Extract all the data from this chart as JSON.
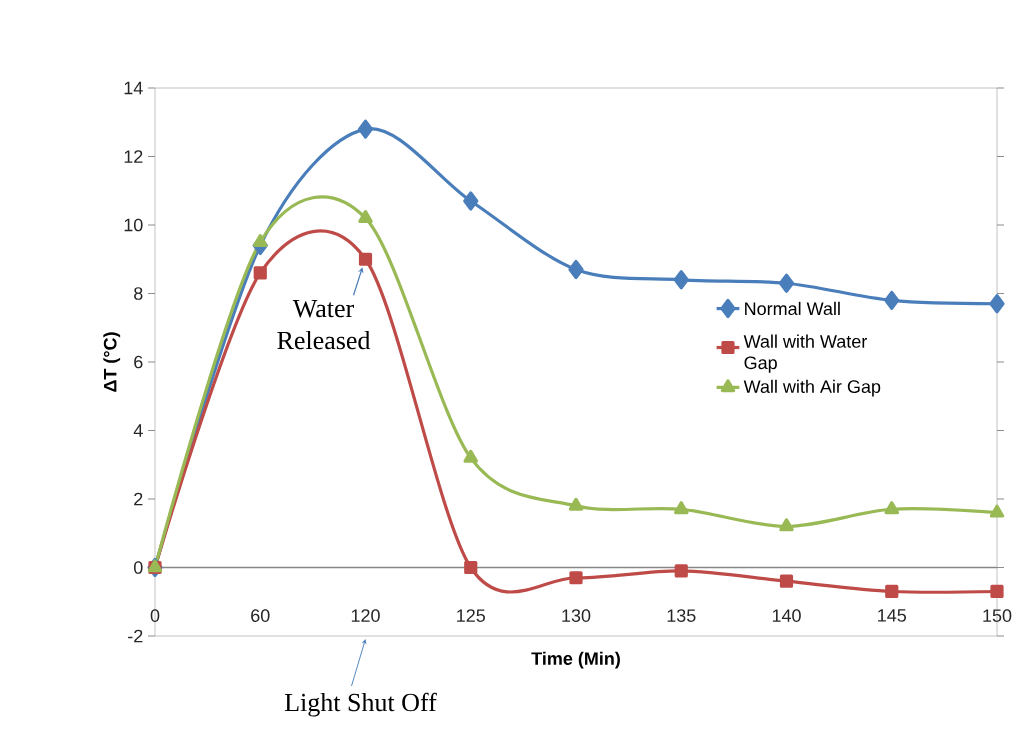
{
  "chart_data": {
    "type": "line",
    "xlabel": "Time (Min)",
    "ylabel": "ΔT (°C)",
    "categories": [
      "0",
      "60",
      "120",
      "125",
      "130",
      "135",
      "140",
      "145",
      "150"
    ],
    "series": [
      {
        "name": "Normal Wall",
        "color": "#4a7ebb",
        "marker": "diamond",
        "values": [
          0,
          9.4,
          12.8,
          10.7,
          8.7,
          8.4,
          8.3,
          7.8,
          7.7
        ]
      },
      {
        "name": "Wall with Water Gap",
        "color": "#be4b48",
        "marker": "square",
        "values": [
          0,
          8.6,
          9.0,
          0,
          -0.3,
          -0.1,
          -0.4,
          -0.7,
          -0.7
        ]
      },
      {
        "name": "Wall with Air Gap",
        "color": "#98b954",
        "marker": "triangle",
        "values": [
          0,
          9.5,
          10.2,
          3.2,
          1.8,
          1.7,
          1.2,
          1.7,
          1.6
        ]
      }
    ],
    "ylim": [
      -2,
      14
    ],
    "yticks": [
      -2,
      0,
      2,
      4,
      6,
      8,
      10,
      12,
      14
    ],
    "ref_lines": [
      {
        "axis": "y",
        "value": 0,
        "color": "#868686"
      }
    ],
    "annotations": [
      {
        "text": "Water Released",
        "x": "120",
        "y": 9.0
      },
      {
        "text": "Light Shut Off",
        "x": "120"
      }
    ],
    "grid": false,
    "legend": "right"
  }
}
